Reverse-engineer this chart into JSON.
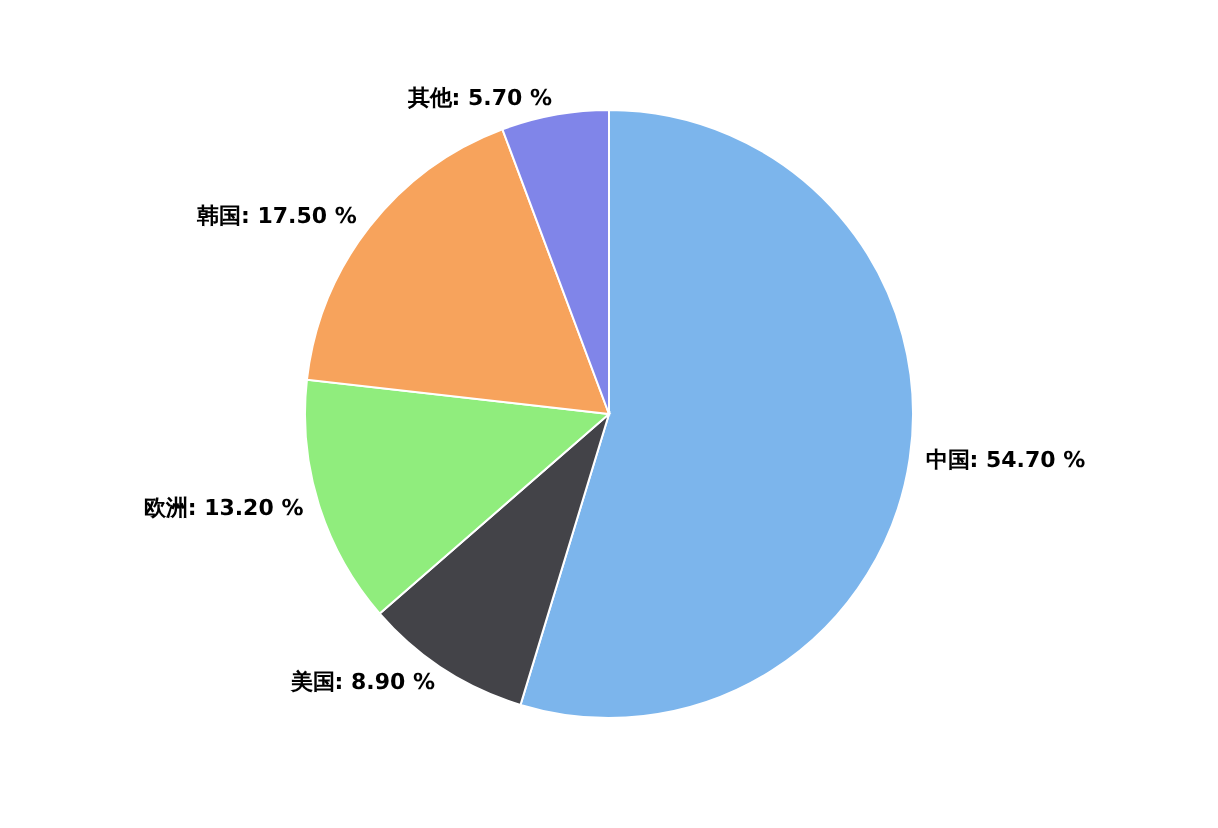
{
  "chart_data": {
    "type": "pie",
    "categories": [
      "中国",
      "美国",
      "欧洲",
      "韩国",
      "其他"
    ],
    "values": [
      54.7,
      8.9,
      13.2,
      17.5,
      5.7
    ],
    "colors": [
      "#7cb5ec",
      "#434348",
      "#90ed7d",
      "#f7a35c",
      "#8085e9"
    ],
    "value_labels": [
      "54.70 %",
      "8.90 %",
      "13.20 %",
      "17.50 %",
      "5.70 %"
    ]
  }
}
